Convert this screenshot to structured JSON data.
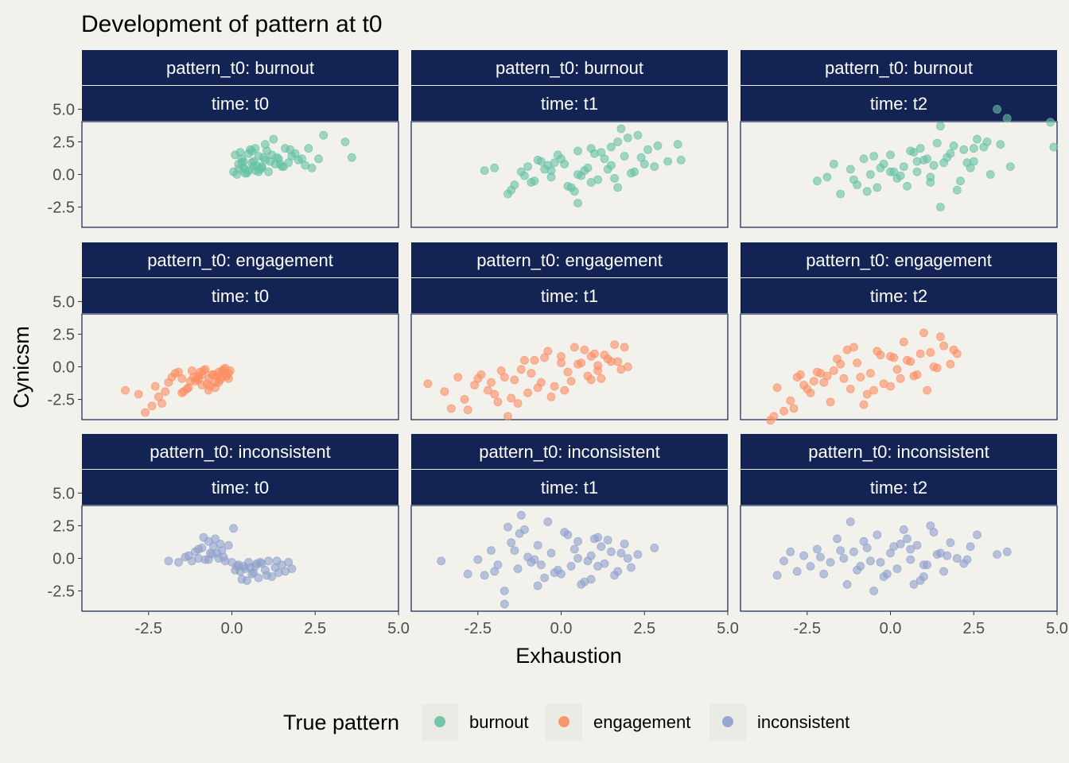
{
  "chart_data": {
    "type": "scatter",
    "title": "Development of pattern at t0",
    "xlabel": "Exhaustion",
    "ylabel": "Cynicsm",
    "xlim": [
      -4.5,
      5.0
    ],
    "ylim": [
      -4.05,
      4.05
    ],
    "x_ticks": [
      "-2.5",
      "0.0",
      "2.5",
      "5.0"
    ],
    "y_ticks": [
      "5.0",
      "2.5",
      "0.0",
      "-2.5"
    ],
    "x_tick_values": [
      -2.5,
      0.0,
      2.5,
      5.0
    ],
    "y_tick_values": [
      5.0,
      2.5,
      0.0,
      -2.5
    ],
    "grid": false,
    "legend_position": "bottom",
    "legend": {
      "title": "True pattern",
      "entries": [
        "burnout",
        "engagement",
        "inconsistent"
      ]
    },
    "colors": {
      "burnout": "#66C2A5",
      "engagement": "#FC8D62",
      "inconsistent": "#8DA0CB",
      "strip_bg": "#132353",
      "panel_bg": "#F3F1EC"
    },
    "row_labels": [
      "pattern_t0: burnout",
      "pattern_t0: engagement",
      "pattern_t0: inconsistent"
    ],
    "col_labels": [
      "time: t0",
      "time: t1",
      "time: t2"
    ],
    "panels": [
      {
        "row": 0,
        "col": 0,
        "series": "burnout",
        "x": [
          0.05,
          0.2,
          0.3,
          0.4,
          0.5,
          0.6,
          0.7,
          0.8,
          0.9,
          1.0,
          0.15,
          0.35,
          0.55,
          0.75,
          0.95,
          1.1,
          1.2,
          1.3,
          0.25,
          0.45,
          0.65,
          0.85,
          1.05,
          1.4,
          1.5,
          1.6,
          1.7,
          1.8,
          2.0,
          2.2,
          0.1,
          0.3,
          0.5,
          0.7,
          0.9,
          1.15,
          1.35,
          1.55,
          1.9,
          2.1,
          0.2,
          0.6,
          1.0,
          1.45,
          1.75,
          2.3,
          2.4,
          2.6,
          3.4,
          3.6,
          2.75,
          0.4,
          0.8,
          1.25,
          0.35,
          0.65
        ],
        "y": [
          0.2,
          0.8,
          1.2,
          0.4,
          1.6,
          0.9,
          0.3,
          1.4,
          0.6,
          1.1,
          0.0,
          0.5,
          1.9,
          0.7,
          1.3,
          0.2,
          1.5,
          0.8,
          1.7,
          0.1,
          1.0,
          0.4,
          1.8,
          1.2,
          0.6,
          2.0,
          0.9,
          1.4,
          1.1,
          0.7,
          1.5,
          0.9,
          0.3,
          2.0,
          0.5,
          1.0,
          1.3,
          0.6,
          1.6,
          1.2,
          0.4,
          1.8,
          2.3,
          0.8,
          1.9,
          2.0,
          0.5,
          1.2,
          2.5,
          1.3,
          3.0,
          0.1,
          0.2,
          2.7,
          1.0,
          0.6
        ]
      },
      {
        "row": 0,
        "col": 1,
        "series": "burnout",
        "x": [
          -2.3,
          -2.0,
          -1.6,
          -1.4,
          -1.2,
          -1.0,
          -0.8,
          -0.6,
          -0.5,
          -0.3,
          -0.1,
          0.1,
          0.3,
          0.5,
          0.7,
          0.9,
          1.1,
          1.3,
          1.5,
          1.7,
          1.9,
          2.1,
          2.3,
          2.6,
          2.9,
          3.2,
          3.5,
          3.6,
          -1.5,
          -0.9,
          -0.2,
          0.4,
          0.8,
          1.2,
          1.6,
          2.0,
          2.4,
          2.8,
          0.0,
          0.6,
          1.4,
          1.8,
          -0.4,
          0.2,
          1.0,
          2.2,
          -1.1,
          -0.7,
          0.5,
          1.5,
          0.5,
          1.7,
          2.5,
          -0.3,
          0.9
        ],
        "y": [
          0.3,
          0.5,
          -1.5,
          -0.8,
          0.2,
          0.6,
          -0.5,
          1.0,
          0.4,
          -0.2,
          1.5,
          0.8,
          -1.0,
          1.8,
          0.3,
          2.0,
          -0.4,
          1.2,
          0.7,
          2.5,
          1.4,
          0.1,
          3.0,
          1.9,
          2.2,
          1.0,
          2.3,
          1.1,
          -1.2,
          -0.6,
          0.9,
          -1.3,
          0.5,
          1.7,
          -0.3,
          2.8,
          1.3,
          0.6,
          1.2,
          -0.1,
          0.4,
          3.5,
          0.7,
          -0.9,
          1.6,
          0.2,
          -0.1,
          1.1,
          0.0,
          2.1,
          -2.2,
          -1.0,
          0.8,
          0.3,
          -0.6
        ]
      },
      {
        "row": 0,
        "col": 2,
        "series": "burnout",
        "x": [
          -2.2,
          -1.9,
          -1.5,
          -1.2,
          -1.0,
          -0.8,
          -0.6,
          -0.4,
          -0.2,
          0.0,
          0.2,
          0.4,
          0.6,
          0.8,
          1.0,
          1.2,
          1.4,
          1.6,
          1.8,
          2.0,
          2.2,
          2.4,
          2.6,
          2.8,
          3.0,
          3.3,
          3.6,
          4.8,
          4.9,
          -1.7,
          -1.1,
          -0.5,
          0.1,
          0.5,
          0.9,
          1.3,
          1.7,
          2.1,
          2.5,
          2.9,
          3.2,
          3.5,
          0.3,
          0.7,
          1.1,
          1.5,
          -0.7,
          -0.3,
          1.9,
          2.3,
          1.5,
          0.8,
          2.5,
          0.0,
          1.2
        ],
        "y": [
          -0.5,
          -0.2,
          -1.5,
          0.4,
          -0.8,
          1.2,
          0.0,
          -1.0,
          0.8,
          1.5,
          -0.3,
          0.6,
          1.8,
          0.2,
          1.1,
          -0.6,
          2.4,
          0.9,
          1.6,
          -1.2,
          1.9,
          0.5,
          2.7,
          2.1,
          0.0,
          2.3,
          0.6,
          4.0,
          2.1,
          0.8,
          -0.4,
          1.4,
          0.2,
          -0.9,
          2.0,
          0.7,
          1.3,
          -0.5,
          1.0,
          2.5,
          5.0,
          4.3,
          -0.1,
          1.7,
          1.2,
          3.7,
          -1.3,
          0.5,
          2.2,
          0.9,
          -2.5,
          1.0,
          2.0,
          0.2,
          -0.2
        ]
      },
      {
        "row": 1,
        "col": 0,
        "series": "engagement",
        "x": [
          -3.2,
          -2.8,
          -2.6,
          -2.3,
          -2.1,
          -1.9,
          -1.7,
          -1.5,
          -1.3,
          -1.2,
          -1.1,
          -1.0,
          -0.9,
          -0.8,
          -0.7,
          -0.6,
          -0.5,
          -0.4,
          -0.3,
          -0.2,
          -0.1,
          -0.05,
          -1.45,
          -1.15,
          -0.95,
          -0.75,
          -0.55,
          -0.35,
          -0.25,
          -0.15,
          -1.6,
          -1.35,
          -1.05,
          -0.85,
          -0.65,
          -0.45,
          -0.3,
          -2.4,
          -2.0,
          -1.8,
          -1.25,
          -0.9,
          -0.5,
          -0.2,
          -0.1,
          -1.0,
          -0.7,
          -0.4,
          -1.5,
          -2.2
        ],
        "y": [
          -1.8,
          -2.1,
          -3.5,
          -1.5,
          -2.8,
          -1.2,
          -0.5,
          -0.9,
          -1.6,
          -0.3,
          -1.1,
          -0.7,
          -1.4,
          -0.2,
          -0.9,
          -0.6,
          -1.2,
          -0.4,
          -0.8,
          -0.1,
          -0.5,
          -0.3,
          -1.9,
          -0.8,
          -0.4,
          -1.3,
          -0.6,
          -1.0,
          -0.2,
          -0.7,
          -0.4,
          -1.7,
          -0.9,
          -0.3,
          -1.5,
          -0.7,
          -0.3,
          -3.0,
          -1.9,
          -0.8,
          -1.1,
          -0.6,
          -1.6,
          -0.5,
          -0.9,
          -1.0,
          -1.8,
          -1.2,
          -2.0,
          -2.3
        ]
      },
      {
        "row": 1,
        "col": 1,
        "series": "engagement",
        "x": [
          -4.0,
          -3.5,
          -3.3,
          -3.1,
          -2.9,
          -2.6,
          -2.4,
          -2.2,
          -2.0,
          -1.8,
          -1.6,
          -1.4,
          -1.2,
          -1.0,
          -0.8,
          -0.6,
          -0.4,
          -0.2,
          0.0,
          0.2,
          0.4,
          0.6,
          0.8,
          1.0,
          1.2,
          1.4,
          1.6,
          1.8,
          1.9,
          2.0,
          -2.8,
          -2.1,
          -1.5,
          -0.9,
          -0.5,
          0.1,
          0.5,
          0.9,
          1.3,
          1.7,
          -1.7,
          -1.1,
          -0.3,
          0.3,
          0.7,
          1.1,
          1.5,
          -2.5,
          -1.3,
          0.0,
          -0.7,
          0.9,
          -1.9,
          1.1
        ],
        "y": [
          -1.3,
          -1.9,
          -3.2,
          -0.8,
          -2.5,
          -1.4,
          -0.6,
          -1.8,
          -2.1,
          -0.3,
          -3.8,
          -1.0,
          -0.2,
          -2.0,
          0.5,
          -1.2,
          1.2,
          -1.5,
          0.8,
          -0.4,
          1.5,
          0.3,
          -0.7,
          1.0,
          -0.9,
          0.6,
          1.7,
          -0.2,
          1.5,
          0.0,
          -3.3,
          -1.2,
          -2.4,
          -0.5,
          0.7,
          -1.8,
          0.2,
          -1.0,
          0.9,
          0.4,
          -0.8,
          0.5,
          -2.3,
          -1.1,
          1.3,
          -0.3,
          0.4,
          -0.9,
          -2.8,
          0.3,
          -1.6,
          0.8,
          -2.7,
          0.1
        ]
      },
      {
        "row": 1,
        "col": 2,
        "series": "engagement",
        "x": [
          -3.6,
          -3.4,
          -3.2,
          -3.0,
          -2.8,
          -2.6,
          -2.4,
          -2.2,
          -2.0,
          -1.8,
          -1.6,
          -1.4,
          -1.2,
          -1.0,
          -0.8,
          -0.6,
          -0.4,
          -0.2,
          0.0,
          0.2,
          0.4,
          0.6,
          0.8,
          1.0,
          1.2,
          1.4,
          1.6,
          1.8,
          2.0,
          -3.5,
          -2.9,
          -2.3,
          -1.7,
          -1.1,
          -0.5,
          0.1,
          0.7,
          1.3,
          1.9,
          -2.5,
          -1.5,
          -0.7,
          0.3,
          0.9,
          1.5,
          -1.9,
          -0.9,
          0.5,
          -1.3,
          0.0,
          -2.1,
          -0.3,
          1.1,
          -2.7
        ],
        "y": [
          -4.1,
          -1.6,
          -3.4,
          -2.6,
          -0.8,
          -1.4,
          -2.0,
          -0.4,
          -1.2,
          -2.7,
          0.6,
          -0.9,
          -1.7,
          0.3,
          -2.9,
          -0.5,
          1.2,
          -1.3,
          0.8,
          -0.2,
          1.9,
          0.4,
          -0.6,
          2.6,
          1.1,
          -0.1,
          1.6,
          0.2,
          1.0,
          -3.8,
          -3.2,
          -1.1,
          -0.3,
          1.5,
          -1.8,
          0.7,
          -0.7,
          0.0,
          1.3,
          -1.7,
          0.2,
          -2.1,
          -0.9,
          1.0,
          2.3,
          -0.7,
          -0.8,
          0.5,
          1.3,
          -1.5,
          -0.5,
          0.9,
          -1.8,
          -0.6
        ]
      },
      {
        "row": 2,
        "col": 0,
        "series": "inconsistent",
        "x": [
          -1.9,
          -1.6,
          -1.4,
          -1.2,
          -1.1,
          -1.0,
          -0.9,
          -0.8,
          -0.7,
          -0.6,
          -0.5,
          -0.4,
          -0.3,
          -0.2,
          -0.1,
          0.0,
          0.1,
          0.2,
          0.3,
          0.4,
          0.5,
          0.6,
          0.7,
          0.8,
          0.9,
          1.0,
          1.1,
          1.2,
          1.3,
          1.4,
          1.5,
          1.6,
          1.7,
          1.8,
          -1.3,
          -0.85,
          -0.55,
          -0.25,
          0.15,
          0.45,
          0.75,
          1.05,
          1.35,
          -0.65,
          -0.35,
          0.25,
          0.55,
          0.85,
          -1.0,
          -0.7,
          0.05,
          0.65,
          -0.45,
          0.35
        ],
        "y": [
          -0.2,
          -0.3,
          0.1,
          -0.2,
          0.5,
          0.0,
          0.8,
          -0.1,
          1.3,
          0.3,
          1.5,
          0.0,
          0.6,
          -0.2,
          1.0,
          -0.3,
          -0.9,
          -0.5,
          -1.6,
          -0.8,
          -0.3,
          -1.2,
          -0.6,
          -1.5,
          -0.4,
          -0.9,
          -0.2,
          -1.4,
          -0.7,
          -1.1,
          -0.5,
          -1.0,
          -0.3,
          -0.8,
          0.2,
          1.6,
          0.9,
          0.1,
          -0.6,
          -1.7,
          -0.4,
          -1.3,
          -0.2,
          0.4,
          1.1,
          -1.0,
          -0.7,
          -0.3,
          0.7,
          -0.1,
          2.3,
          -1.1,
          0.4,
          -0.6
        ]
      },
      {
        "row": 2,
        "col": 1,
        "series": "inconsistent",
        "x": [
          -3.6,
          -2.8,
          -2.5,
          -2.3,
          -2.1,
          -1.9,
          -1.7,
          -1.5,
          -1.3,
          -1.1,
          -0.9,
          -0.7,
          -0.5,
          -0.3,
          -0.1,
          0.1,
          0.3,
          0.5,
          0.7,
          0.9,
          1.1,
          1.3,
          1.5,
          1.7,
          1.9,
          2.1,
          2.3,
          2.8,
          -1.7,
          -1.2,
          -0.8,
          -0.4,
          0.0,
          0.4,
          0.8,
          1.2,
          1.6,
          2.0,
          -2.0,
          -1.4,
          -0.6,
          0.2,
          0.6,
          1.0,
          1.4,
          -1.0,
          -0.2,
          -1.6,
          0.9,
          1.8,
          -0.7,
          0.5,
          -1.25,
          1.1
        ],
        "y": [
          -0.2,
          -1.2,
          -0.1,
          -1.3,
          0.6,
          -0.5,
          -2.5,
          1.2,
          -0.8,
          2.2,
          -0.3,
          1.0,
          -1.5,
          0.4,
          -0.9,
          2.0,
          -0.6,
          1.3,
          -1.8,
          0.2,
          1.6,
          -0.4,
          0.5,
          -1.0,
          1.1,
          -0.7,
          0.3,
          0.8,
          -3.5,
          3.3,
          -0.1,
          2.8,
          -1.2,
          0.7,
          -0.2,
          0.9,
          -1.3,
          0.0,
          -1.0,
          0.6,
          -0.5,
          1.8,
          -2.0,
          1.5,
          1.4,
          0.1,
          -1.1,
          2.4,
          -1.6,
          0.4,
          -2.1,
          0.0,
          1.9,
          -0.6
        ]
      },
      {
        "row": 2,
        "col": 2,
        "series": "inconsistent",
        "x": [
          -3.4,
          -3.2,
          -3.0,
          -2.8,
          -2.6,
          -2.4,
          -2.2,
          -2.0,
          -1.8,
          -1.6,
          -1.4,
          -1.2,
          -1.0,
          -0.8,
          -0.6,
          -0.4,
          -0.2,
          0.0,
          0.2,
          0.4,
          0.6,
          0.8,
          1.0,
          1.2,
          1.4,
          1.6,
          1.8,
          2.0,
          2.2,
          2.4,
          2.6,
          3.2,
          3.5,
          -1.3,
          -0.7,
          -0.1,
          0.5,
          1.1,
          1.7,
          2.3,
          -1.1,
          -0.5,
          0.3,
          0.9,
          1.5,
          -0.9,
          0.1,
          0.7,
          -1.5,
          1.3,
          -0.3,
          1.0,
          -2.1,
          0.6
        ],
        "y": [
          -1.3,
          -0.2,
          0.5,
          -1.0,
          0.2,
          -0.6,
          0.7,
          -1.2,
          -0.3,
          1.5,
          0.0,
          2.8,
          -0.9,
          1.3,
          -0.2,
          1.8,
          -1.4,
          0.4,
          -0.8,
          2.2,
          -0.1,
          1.0,
          -0.5,
          2.5,
          0.3,
          -1.0,
          1.2,
          0.0,
          -0.4,
          0.9,
          1.8,
          0.3,
          0.5,
          -2.0,
          0.8,
          -1.2,
          1.5,
          -0.5,
          0.2,
          -0.1,
          0.5,
          -2.5,
          1.1,
          -1.7,
          0.4,
          -0.6,
          0.9,
          -2.0,
          0.6,
          2.0,
          -0.3,
          -1.4,
          0.1,
          0.7
        ]
      }
    ]
  }
}
